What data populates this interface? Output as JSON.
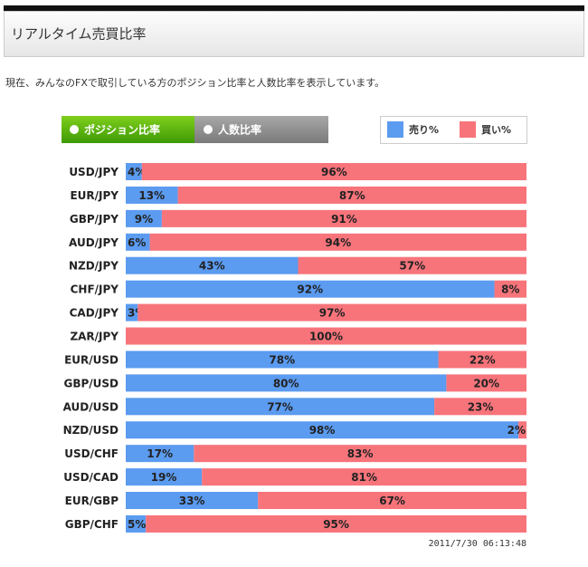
{
  "page": {
    "title": "リアルタイム売買比率",
    "description": "現在、みんなのFXで取引している方のポジション比率と人数比率を表示しています。",
    "tabs": [
      "ポジション比率",
      "人数比率"
    ],
    "timestamp": "2011/7/30 06:13:48"
  },
  "chart_data": {
    "type": "stacked-bar",
    "orientation": "horizontal",
    "categories": [
      "USD/JPY",
      "EUR/JPY",
      "GBP/JPY",
      "AUD/JPY",
      "NZD/JPY",
      "CHF/JPY",
      "CAD/JPY",
      "ZAR/JPY",
      "EUR/USD",
      "GBP/USD",
      "AUD/USD",
      "NZD/USD",
      "USD/CHF",
      "USD/CAD",
      "EUR/GBP",
      "GBP/CHF"
    ],
    "series": [
      {
        "name": "売り%",
        "color": "#5b9bf0",
        "values": [
          4,
          13,
          9,
          6,
          43,
          92,
          3,
          0,
          78,
          80,
          77,
          98,
          17,
          19,
          33,
          5
        ],
        "value_labels": [
          "4%",
          "13%",
          "9%",
          "6%",
          "43%",
          "92%",
          "3%",
          null,
          "78%",
          "80%",
          "77%",
          "98%",
          "17%",
          "19%",
          "33%",
          "5%"
        ]
      },
      {
        "name": "買い%",
        "color": "#f7747b",
        "values": [
          96,
          87,
          91,
          94,
          57,
          8,
          97,
          100,
          22,
          20,
          23,
          2,
          83,
          81,
          67,
          95
        ],
        "value_labels": [
          "96%",
          "87%",
          "91%",
          "94%",
          "57%",
          "8%",
          "97%",
          "100%",
          "22%",
          "20%",
          "23%",
          "2%",
          "83%",
          "81%",
          "67%",
          "95%"
        ]
      }
    ]
  }
}
